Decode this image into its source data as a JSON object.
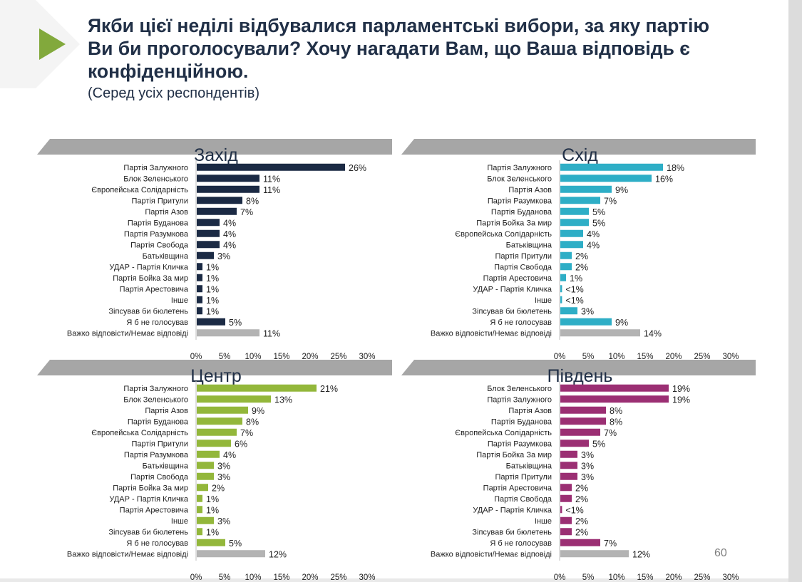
{
  "slide": {
    "title": "Якби цієї неділі відбувалися парламентські вибори, за яку партію Ви би проголосували? Хочу нагадати Вам, що Ваша відповідь є конфіденційною.",
    "subtitle": "(Серед усіх респондентів)",
    "page_number": "60"
  },
  "colors": {
    "title_text": "#213047",
    "header_band": "#a6a6a6",
    "grey_bar": "#b3b3b3",
    "west": "#1b2a44",
    "east": "#2eaec6",
    "center": "#93b73b",
    "south": "#9b2f73",
    "arrow": "#82a93c"
  },
  "chart_data": [
    {
      "type": "bar",
      "orientation": "horizontal",
      "title": "Захід",
      "color": "#1b2a44",
      "xlim": [
        0,
        30
      ],
      "ticks": [
        "0%",
        "5%",
        "10%",
        "15%",
        "20%",
        "25%",
        "30%"
      ],
      "categories": [
        "Партія Залужного",
        "Блок Зеленського",
        "Європейська Солідарність",
        "Партія Притули",
        "Партія Азов",
        "Партія Буданова",
        "Партія Разумкова",
        "Партія Свобода",
        "Батьківщина",
        "УДАР - Партія Кличка",
        "Партія Бойка За мир",
        "Партія Арестовича",
        "Інше",
        "Зіпсував би бюлетень",
        "Я б не голосував",
        "Важко відповісти/Немає відповіді"
      ],
      "values": [
        26,
        11,
        11,
        8,
        7,
        4,
        4,
        4,
        3,
        1,
        1,
        1,
        1,
        1,
        5,
        11
      ],
      "labels": [
        "26%",
        "11%",
        "11%",
        "8%",
        "7%",
        "4%",
        "4%",
        "4%",
        "3%",
        "1%",
        "1%",
        "1%",
        "1%",
        "1%",
        "5%",
        "11%"
      ],
      "grey_last": true
    },
    {
      "type": "bar",
      "orientation": "horizontal",
      "title": "Схід",
      "color": "#2eaec6",
      "xlim": [
        0,
        30
      ],
      "ticks": [
        "0%",
        "5%",
        "10%",
        "15%",
        "20%",
        "25%",
        "30%"
      ],
      "categories": [
        "Партія Залужного",
        "Блок Зеленського",
        "Партія Азов",
        "Партія Разумкова",
        "Партія Буданова",
        "Партія Бойка За мир",
        "Європейська Солідарність",
        "Батьківщина",
        "Партія Притули",
        "Партія Свобода",
        "Партія Арестовича",
        "УДАР - Партія Кличка",
        "Інше",
        "Зіпсував би бюлетень",
        "Я б не голосував",
        "Важко відповісти/Немає відповіді"
      ],
      "values": [
        18,
        16,
        9,
        7,
        5,
        5,
        4,
        4,
        2,
        2,
        1,
        0.3,
        0.3,
        3,
        9,
        14
      ],
      "labels": [
        "18%",
        "16%",
        "9%",
        "7%",
        "5%",
        "5%",
        "4%",
        "4%",
        "2%",
        "2%",
        "1%",
        "<1%",
        "<1%",
        "3%",
        "9%",
        "14%"
      ],
      "grey_last": true
    },
    {
      "type": "bar",
      "orientation": "horizontal",
      "title": "Центр",
      "color": "#93b73b",
      "xlim": [
        0,
        30
      ],
      "ticks": [
        "0%",
        "5%",
        "10%",
        "15%",
        "20%",
        "25%",
        "30%"
      ],
      "categories": [
        "Партія Залужного",
        "Блок Зеленського",
        "Партія Азов",
        "Партія Буданова",
        "Європейська Солідарність",
        "Партія Притули",
        "Партія Разумкова",
        "Батьківщина",
        "Партія Свобода",
        "Партія Бойка За мир",
        "УДАР - Партія Кличка",
        "Партія Арестовича",
        "Інше",
        "Зіпсував би бюлетень",
        "Я б не голосував",
        "Важко відповісти/Немає відповіді"
      ],
      "values": [
        21,
        13,
        9,
        8,
        7,
        6,
        4,
        3,
        3,
        2,
        1,
        1,
        3,
        1,
        5,
        12
      ],
      "labels": [
        "21%",
        "13%",
        "9%",
        "8%",
        "7%",
        "6%",
        "4%",
        "3%",
        "3%",
        "2%",
        "1%",
        "1%",
        "3%",
        "1%",
        "5%",
        "12%"
      ],
      "grey_last": true
    },
    {
      "type": "bar",
      "orientation": "horizontal",
      "title": "Південь",
      "color": "#9b2f73",
      "xlim": [
        0,
        30
      ],
      "ticks": [
        "0%",
        "5%",
        "10%",
        "15%",
        "20%",
        "25%",
        "30%"
      ],
      "categories": [
        "Блок Зеленського",
        "Партія Залужного",
        "Партія Азов",
        "Партія Буданова",
        "Європейська Солідарність",
        "Партія Разумкова",
        "Партія Бойка За мир",
        "Батьківщина",
        "Партія Притули",
        "Партія Арестовича",
        "Партія Свобода",
        "УДАР - Партія Кличка",
        "Інше",
        "Зіпсував би бюлетень",
        "Я б не голосував",
        "Важко відповісти/Немає відповіді"
      ],
      "values": [
        19,
        19,
        8,
        8,
        7,
        5,
        3,
        3,
        3,
        2,
        2,
        0.3,
        2,
        2,
        7,
        12
      ],
      "labels": [
        "19%",
        "19%",
        "8%",
        "8%",
        "7%",
        "5%",
        "3%",
        "3%",
        "3%",
        "2%",
        "2%",
        "<1%",
        "2%",
        "2%",
        "7%",
        "12%"
      ],
      "grey_last": true
    }
  ]
}
